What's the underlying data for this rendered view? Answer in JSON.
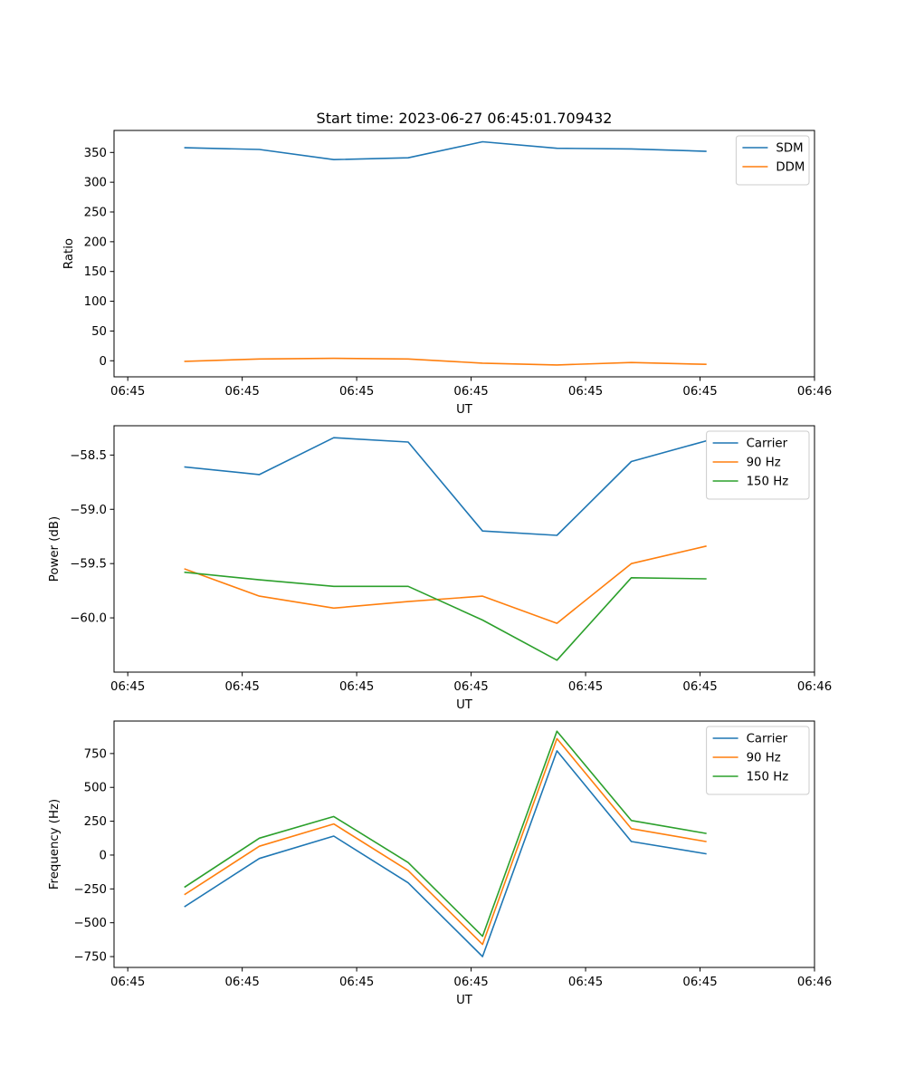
{
  "chart_data": [
    {
      "type": "line",
      "title": "Start time: 2023-06-27 06:45:01.709432",
      "xlabel": "UT",
      "ylabel": "Ratio",
      "x_tick_labels": [
        "06:45",
        "06:45",
        "06:45",
        "06:45",
        "06:45",
        "06:45",
        "06:46"
      ],
      "x_ticks": [
        0,
        1,
        2,
        3,
        4,
        5,
        6
      ],
      "xlim": [
        -0.12,
        6.0
      ],
      "x": [
        0.5,
        1.15,
        1.8,
        2.45,
        3.1,
        3.75,
        4.4,
        5.05
      ],
      "y_ticks": [
        0,
        50,
        100,
        150,
        200,
        250,
        300,
        350
      ],
      "ylim": [
        -27,
        387
      ],
      "grid": false,
      "legend": "upper-right",
      "series": [
        {
          "name": "SDM",
          "color": "#1f77b4",
          "values": [
            358,
            355,
            338,
            341,
            368,
            357,
            356,
            352
          ]
        },
        {
          "name": "DDM",
          "color": "#ff7f0e",
          "values": [
            -1,
            3,
            4,
            3,
            -4,
            -7,
            -3,
            -6
          ]
        }
      ]
    },
    {
      "type": "line",
      "title": "",
      "xlabel": "UT",
      "ylabel": "Power (dB)",
      "x_tick_labels": [
        "06:45",
        "06:45",
        "06:45",
        "06:45",
        "06:45",
        "06:45",
        "06:46"
      ],
      "x_ticks": [
        0,
        1,
        2,
        3,
        4,
        5,
        6
      ],
      "xlim": [
        -0.12,
        6.0
      ],
      "x": [
        0.5,
        1.15,
        1.8,
        2.45,
        3.1,
        3.75,
        4.4,
        5.05
      ],
      "y_ticks": [
        -58.5,
        -59.0,
        -59.5,
        -60.0
      ],
      "y_tick_labels": [
        "−58.5",
        "−59.0",
        "−59.5",
        "−60.0"
      ],
      "ylim": [
        -60.5,
        -58.23
      ],
      "grid": false,
      "legend": "upper-right",
      "series": [
        {
          "name": "Carrier",
          "color": "#1f77b4",
          "values": [
            -58.61,
            -58.68,
            -58.34,
            -58.38,
            -59.2,
            -59.24,
            -58.56,
            -58.37
          ]
        },
        {
          "name": "90 Hz",
          "color": "#ff7f0e",
          "values": [
            -59.55,
            -59.8,
            -59.91,
            -59.85,
            -59.8,
            -60.05,
            -59.5,
            -59.34
          ]
        },
        {
          "name": "150 Hz",
          "color": "#2ca02c",
          "values": [
            -59.58,
            -59.65,
            -59.71,
            -59.71,
            -60.02,
            -60.39,
            -59.63,
            -59.64
          ]
        }
      ]
    },
    {
      "type": "line",
      "title": "",
      "xlabel": "UT",
      "ylabel": "Frequency (Hz)",
      "x_tick_labels": [
        "06:45",
        "06:45",
        "06:45",
        "06:45",
        "06:45",
        "06:45",
        "06:46"
      ],
      "x_ticks": [
        0,
        1,
        2,
        3,
        4,
        5,
        6
      ],
      "xlim": [
        -0.12,
        6.0
      ],
      "x": [
        0.5,
        1.15,
        1.8,
        2.45,
        3.1,
        3.75,
        4.4,
        5.05
      ],
      "y_ticks": [
        -750,
        -500,
        -250,
        0,
        250,
        500,
        750
      ],
      "y_tick_labels": [
        "−750",
        "−500",
        "−250",
        "0",
        "250",
        "500",
        "750"
      ],
      "ylim": [
        -830,
        990
      ],
      "grid": false,
      "legend": "upper-right",
      "series": [
        {
          "name": "Carrier",
          "color": "#1f77b4",
          "values": [
            -380,
            -25,
            140,
            -205,
            -750,
            770,
            100,
            10
          ]
        },
        {
          "name": "90 Hz",
          "color": "#ff7f0e",
          "values": [
            -290,
            65,
            230,
            -115,
            -660,
            860,
            195,
            100
          ]
        },
        {
          "name": "150 Hz",
          "color": "#2ca02c",
          "values": [
            -235,
            125,
            285,
            -55,
            -600,
            915,
            255,
            160
          ]
        }
      ]
    }
  ]
}
